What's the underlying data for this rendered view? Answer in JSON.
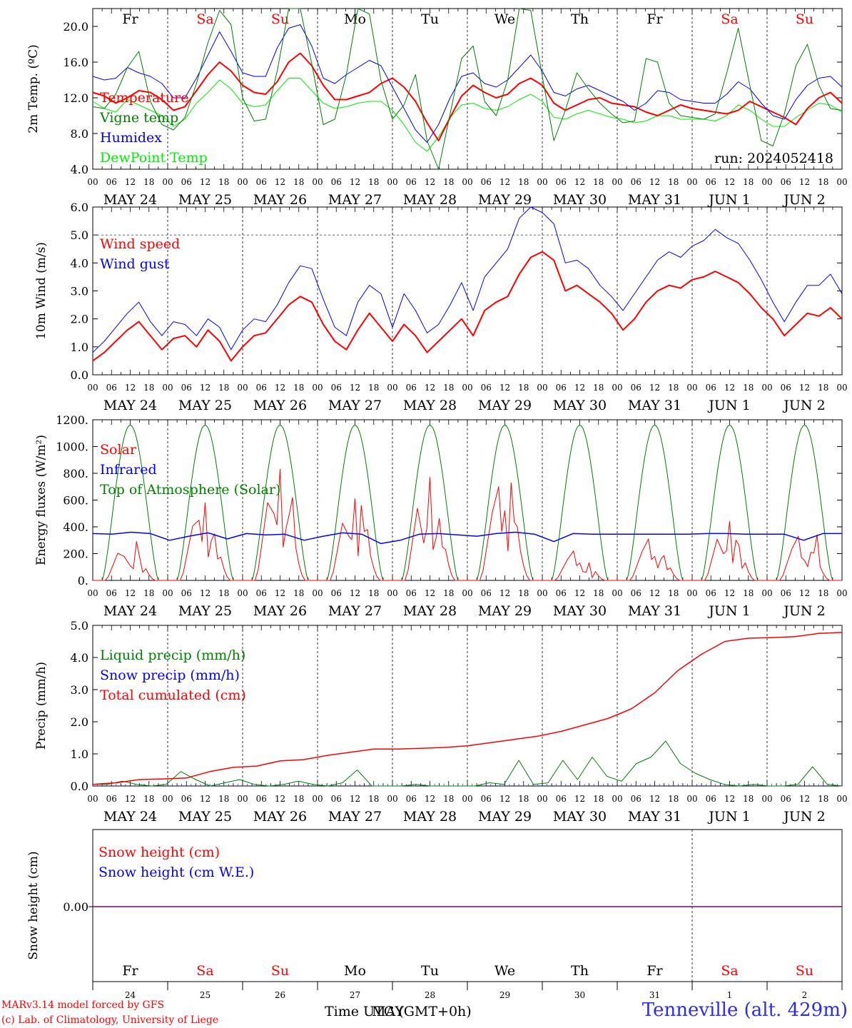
{
  "run_label": "run: 2024052418",
  "footer": {
    "model": "MARv3.14 model forced by GFS",
    "lab": "(c) Lab. of Climatology, University of Liege",
    "time_axis": "Time UTC (GMT+0h)",
    "month_overlay": "MAY",
    "station": "Tenneville (alt. 429m)"
  },
  "days": {
    "names": [
      "Fr",
      "Sa",
      "Su",
      "Mo",
      "Tu",
      "We",
      "Th",
      "Fr",
      "Sa",
      "Su"
    ],
    "weekend": [
      false,
      true,
      true,
      false,
      false,
      false,
      false,
      false,
      true,
      true
    ],
    "dates": [
      "MAY 24",
      "MAY 25",
      "MAY 26",
      "MAY 27",
      "MAY 28",
      "MAY 29",
      "MAY 30",
      "MAY 31",
      "JUN  1",
      "JUN  2"
    ],
    "numbers": [
      "24",
      "25",
      "26",
      "27",
      "28",
      "29",
      "30",
      "31",
      "1",
      "2"
    ],
    "hour_ticks": [
      "00",
      "06",
      "12",
      "18"
    ]
  },
  "colors": {
    "red": "#ff0000",
    "green": "#008000",
    "blue": "#0000ff",
    "lightgreen": "#00ee00",
    "purple": "#800080",
    "grid": "#555555"
  },
  "chart_data": [
    {
      "type": "line",
      "ylabel": "2m Temp. (ºC)",
      "ylim": [
        4,
        22
      ],
      "yticks": [
        "4.0",
        "8.0",
        "12.0",
        "16.0",
        "20.0"
      ],
      "x_unit": "hours since 2024-05-24 00 UTC, 3-hourly",
      "series": [
        {
          "name": "Temperature",
          "color": "#ff0000",
          "width": 2,
          "values": [
            12.6,
            12.2,
            11.4,
            12.0,
            12.8,
            12.6,
            11.8,
            10.6,
            11.0,
            12.8,
            14.6,
            16.0,
            15.0,
            13.4,
            12.6,
            12.4,
            13.8,
            16.0,
            17.0,
            15.6,
            13.4,
            11.8,
            11.8,
            12.2,
            12.6,
            13.6,
            14.2,
            13.2,
            11.6,
            9.2,
            7.2,
            9.8,
            12.2,
            13.4,
            12.6,
            12.0,
            12.4,
            13.6,
            14.2,
            13.4,
            11.4,
            10.6,
            11.2,
            11.8,
            12.0,
            11.4,
            11.2,
            11.0,
            10.4,
            10.0,
            10.6,
            11.2,
            10.8,
            10.6,
            10.4,
            10.2,
            10.6,
            11.6,
            11.0,
            10.4,
            9.8,
            9.0,
            10.8,
            12.0,
            12.6,
            11.4
          ]
        },
        {
          "name": "Vigne temp",
          "color": "#008000",
          "width": 1,
          "values": [
            11.0,
            10.8,
            12.4,
            15.4,
            17.2,
            11.6,
            9.0,
            8.4,
            9.8,
            13.6,
            18.2,
            21.8,
            20.2,
            12.0,
            9.4,
            9.6,
            15.0,
            22.0,
            22.0,
            15.8,
            9.0,
            9.6,
            14.6,
            22.0,
            21.4,
            14.0,
            9.6,
            11.2,
            14.6,
            7.2,
            4.0,
            10.2,
            16.4,
            17.8,
            11.6,
            10.0,
            14.0,
            22.0,
            21.8,
            14.4,
            7.2,
            10.6,
            14.8,
            13.0,
            11.4,
            10.2,
            9.2,
            9.4,
            16.4,
            16.0,
            11.4,
            10.0,
            9.8,
            9.6,
            10.2,
            14.8,
            19.8,
            13.4,
            7.2,
            6.6,
            10.2,
            15.6,
            18.0,
            13.4,
            10.8,
            10.6
          ]
        },
        {
          "name": "Humidex",
          "color": "#0000ff",
          "width": 1,
          "values": [
            14.4,
            14.0,
            14.2,
            15.4,
            14.8,
            14.4,
            13.6,
            12.0,
            12.0,
            14.2,
            16.8,
            19.4,
            17.2,
            14.8,
            14.4,
            14.4,
            17.6,
            19.8,
            20.2,
            17.8,
            14.2,
            13.6,
            14.6,
            15.4,
            16.2,
            15.6,
            13.2,
            10.8,
            8.4,
            7.0,
            9.0,
            12.0,
            14.4,
            14.8,
            13.6,
            13.2,
            14.0,
            15.4,
            16.8,
            15.0,
            12.6,
            12.2,
            13.0,
            13.4,
            12.8,
            12.2,
            11.6,
            10.6,
            11.4,
            12.8,
            12.6,
            11.8,
            11.6,
            11.4,
            11.4,
            12.4,
            13.8,
            13.0,
            11.4,
            10.0,
            9.6,
            11.8,
            13.4,
            14.2,
            14.4,
            13.2
          ]
        },
        {
          "name": "DewPoint Temp",
          "color": "#00ee00",
          "width": 1,
          "values": [
            11.6,
            10.8,
            10.4,
            11.8,
            11.2,
            10.6,
            10.0,
            8.8,
            9.6,
            11.4,
            12.6,
            14.0,
            13.0,
            11.4,
            11.0,
            11.2,
            12.8,
            14.2,
            14.2,
            12.8,
            11.4,
            10.8,
            11.0,
            11.4,
            11.6,
            11.6,
            10.6,
            9.0,
            7.0,
            6.0,
            7.6,
            9.8,
            11.2,
            11.4,
            10.8,
            10.6,
            11.0,
            11.8,
            12.4,
            11.6,
            9.8,
            9.6,
            10.2,
            10.6,
            10.2,
            9.8,
            9.6,
            9.2,
            9.4,
            10.0,
            10.0,
            9.6,
            9.6,
            9.6,
            9.4,
            10.0,
            11.2,
            10.6,
            9.6,
            8.8,
            8.8,
            9.8,
            10.6,
            11.4,
            11.2,
            10.4
          ]
        }
      ]
    },
    {
      "type": "line",
      "ylabel": "10m Wind (m/s)",
      "ylim": [
        0,
        6
      ],
      "yticks": [
        "0.0",
        "1.0",
        "2.0",
        "3.0",
        "4.0",
        "5.0",
        "6.0"
      ],
      "ref_line": 5.0,
      "series": [
        {
          "name": "Wind speed",
          "color": "#ff0000",
          "width": 2,
          "values": [
            0.5,
            0.8,
            1.2,
            1.6,
            1.9,
            1.4,
            0.9,
            1.3,
            1.4,
            1.0,
            1.6,
            1.2,
            0.5,
            1.0,
            1.4,
            1.5,
            2.0,
            2.5,
            2.8,
            2.6,
            1.8,
            1.2,
            0.9,
            1.6,
            2.2,
            1.7,
            1.2,
            1.8,
            1.4,
            0.8,
            1.2,
            1.6,
            2.0,
            1.4,
            2.3,
            2.6,
            2.8,
            3.6,
            4.2,
            4.4,
            4.1,
            3.0,
            3.2,
            2.9,
            2.6,
            2.2,
            1.6,
            2.0,
            2.6,
            3.0,
            3.2,
            3.1,
            3.4,
            3.5,
            3.7,
            3.5,
            3.3,
            2.9,
            2.4,
            2.0,
            1.4,
            1.8,
            2.2,
            2.1,
            2.4,
            2.0
          ]
        },
        {
          "name": "Wind gust",
          "color": "#0000ff",
          "width": 1,
          "values": [
            0.8,
            1.2,
            1.7,
            2.2,
            2.6,
            1.9,
            1.4,
            1.9,
            1.8,
            1.4,
            2.0,
            1.7,
            0.9,
            1.6,
            2.0,
            1.9,
            2.5,
            3.3,
            3.9,
            3.8,
            2.7,
            1.7,
            1.4,
            2.6,
            3.2,
            2.9,
            1.7,
            2.9,
            2.3,
            1.5,
            1.8,
            2.5,
            3.3,
            2.3,
            3.5,
            4.0,
            4.5,
            5.6,
            6.0,
            5.8,
            5.4,
            4.0,
            4.1,
            3.8,
            3.2,
            2.8,
            2.3,
            2.9,
            3.5,
            4.1,
            4.4,
            4.2,
            4.6,
            4.8,
            5.2,
            4.9,
            4.7,
            4.1,
            3.4,
            2.6,
            1.9,
            2.6,
            3.2,
            3.2,
            3.6,
            2.9
          ]
        }
      ]
    },
    {
      "type": "line",
      "ylabel": "Energy fluxes (W/m²)",
      "ylim": [
        0,
        1200
      ],
      "yticks": [
        "0.",
        "200.",
        "400.",
        "600.",
        "800.",
        "1000.",
        "1200."
      ],
      "series": [
        {
          "name": "Solar",
          "color": "#ff0000",
          "width": 1,
          "peaks": [
            [
              180,
              110,
              290,
              60
            ],
            [
              450,
              580,
              300,
              160
            ],
            [
              500,
              830,
              400,
              620
            ],
            [
              330,
              610,
              560,
              380
            ],
            [
              280,
              770,
              320,
              250
            ],
            [
              700,
              520,
              730,
              400
            ],
            [
              220,
              130,
              60,
              20
            ],
            [
              310,
              180,
              160,
              80
            ],
            [
              200,
              440,
              300,
              90
            ],
            [
              330,
              150,
              210,
              340
            ]
          ]
        },
        {
          "name": "Infrared",
          "color": "#0000ff",
          "width": 1.5,
          "values": [
            350,
            345,
            360,
            350,
            300,
            330,
            355,
            310,
            350,
            340,
            345,
            300,
            330,
            355,
            345,
            275,
            300,
            345,
            350,
            340,
            330,
            350,
            360,
            345,
            290,
            350,
            345,
            345,
            345,
            345,
            345,
            345,
            350,
            350,
            345,
            345,
            345,
            300,
            350,
            350
          ]
        },
        {
          "name": "Top of Atmosphere (Solar)",
          "color": "#008000",
          "width": 1,
          "peak": 1160
        }
      ]
    },
    {
      "type": "line",
      "ylabel": "Precip (mm/h)",
      "ylim": [
        0,
        5
      ],
      "yticks": [
        "0.0",
        "1.0",
        "2.0",
        "3.0",
        "4.0",
        "5.0"
      ],
      "series": [
        {
          "name": "Liquid precip (mm/h)",
          "color": "#008000",
          "width": 1,
          "values": [
            0.05,
            0.05,
            0.15,
            0.05,
            0.0,
            0.05,
            0.45,
            0.2,
            0.0,
            0.1,
            0.2,
            0.05,
            0.0,
            0.05,
            0.15,
            0.05,
            0.0,
            0.1,
            0.5,
            0.0,
            0.0,
            0.0,
            0.05,
            0.0,
            0.0,
            0.0,
            0.0,
            0.1,
            0.05,
            0.8,
            0.05,
            0.1,
            0.8,
            0.2,
            0.9,
            0.3,
            0.15,
            0.7,
            0.9,
            1.4,
            0.7,
            0.4,
            0.2,
            0.05,
            0.0,
            0.05,
            0.0,
            0.0,
            0.05,
            0.6,
            0.05,
            0.0
          ]
        },
        {
          "name": "Snow precip (mm/h)",
          "color": "#0000ff",
          "width": 1,
          "values": []
        },
        {
          "name": "Total cumulated (cm)",
          "color": "#ff0000",
          "width": 1.5,
          "values": [
            0.05,
            0.1,
            0.2,
            0.22,
            0.25,
            0.45,
            0.58,
            0.62,
            0.78,
            0.82,
            0.95,
            1.05,
            1.15,
            1.15,
            1.17,
            1.2,
            1.25,
            1.35,
            1.45,
            1.55,
            1.7,
            1.9,
            2.1,
            2.4,
            2.9,
            3.6,
            4.1,
            4.5,
            4.6,
            4.62,
            4.65,
            4.75,
            4.78
          ]
        }
      ]
    },
    {
      "type": "line",
      "ylabel": "Snow height (cm)",
      "yticks": [
        "0.00"
      ],
      "series": [
        {
          "name": "Snow height (cm)",
          "color": "#ff0000",
          "values": [
            0
          ]
        },
        {
          "name": "Snow height (cm W.E.)",
          "color": "#0000ff",
          "values": [
            0
          ]
        }
      ]
    }
  ]
}
